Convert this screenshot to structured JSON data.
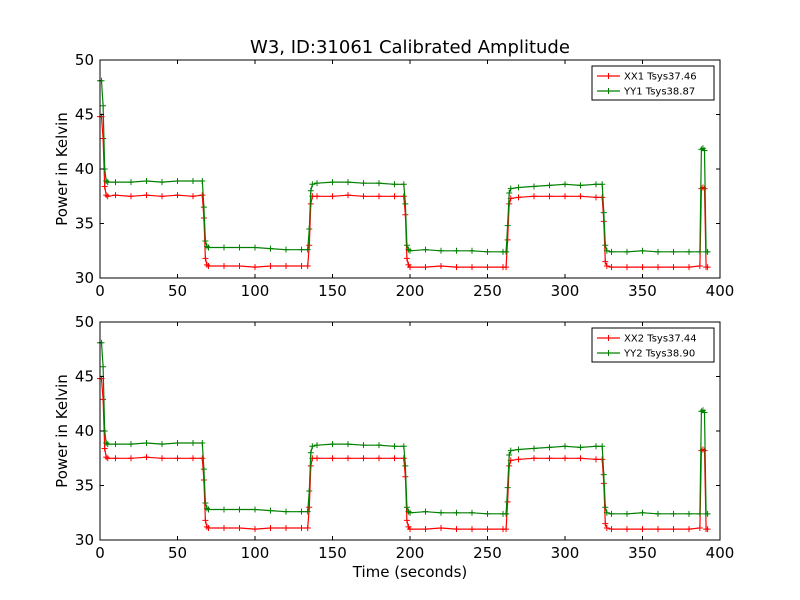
{
  "figure": {
    "title": "W3, ID:31061 Calibrated Amplitude",
    "xlabel": "Time (seconds)"
  },
  "chart_data": [
    {
      "type": "line",
      "title": "W3, ID:31061 Calibrated Amplitude",
      "xlabel": "",
      "ylabel": "Power in Kelvin",
      "xlim": [
        0,
        400
      ],
      "ylim": [
        30,
        50
      ],
      "xticks": [
        0,
        50,
        100,
        150,
        200,
        250,
        300,
        350,
        400
      ],
      "yticks": [
        30,
        35,
        40,
        45,
        50
      ],
      "grid": false,
      "legend": "top-right",
      "series": [
        {
          "name": "XX1 Tsys37.46",
          "color": "#ff0000",
          "marker": "plus",
          "x": [
            0,
            1,
            2,
            3,
            4,
            5,
            10,
            20,
            30,
            40,
            50,
            60,
            66,
            67,
            68,
            69,
            70,
            80,
            90,
            100,
            110,
            120,
            130,
            134,
            135,
            136,
            137,
            140,
            150,
            160,
            170,
            180,
            190,
            196,
            197,
            198,
            199,
            200,
            210,
            220,
            230,
            240,
            250,
            260,
            262,
            263,
            264,
            265,
            270,
            280,
            290,
            300,
            310,
            320,
            324,
            325,
            326,
            327,
            330,
            340,
            350,
            360,
            370,
            380,
            387,
            388,
            389,
            390,
            391,
            392
          ],
          "values": [
            44.8,
            44.8,
            42.8,
            38.4,
            37.6,
            37.5,
            37.6,
            37.5,
            37.6,
            37.5,
            37.6,
            37.5,
            37.6,
            35.5,
            31.8,
            31.2,
            31.1,
            31.1,
            31.1,
            31.0,
            31.1,
            31.1,
            31.1,
            31.1,
            33.0,
            36.8,
            37.5,
            37.5,
            37.5,
            37.6,
            37.5,
            37.5,
            37.5,
            37.5,
            35.8,
            31.8,
            31.2,
            31.0,
            31.0,
            31.1,
            31.0,
            31.0,
            31.0,
            31.0,
            31.0,
            33.5,
            36.8,
            37.3,
            37.4,
            37.5,
            37.5,
            37.5,
            37.5,
            37.4,
            37.4,
            35.2,
            31.5,
            31.1,
            31.0,
            31.0,
            31.0,
            31.0,
            31.0,
            31.0,
            31.1,
            38.2,
            38.3,
            38.2,
            31.0,
            31.0
          ]
        },
        {
          "name": "YY1 Tsys38.87",
          "color": "#008000",
          "marker": "plus",
          "x": [
            0,
            1,
            2,
            3,
            4,
            5,
            10,
            20,
            30,
            40,
            50,
            60,
            66,
            67,
            68,
            69,
            70,
            80,
            90,
            100,
            110,
            120,
            130,
            134,
            135,
            136,
            137,
            140,
            150,
            160,
            170,
            180,
            190,
            196,
            197,
            198,
            199,
            200,
            210,
            220,
            230,
            240,
            250,
            260,
            262,
            263,
            264,
            265,
            270,
            280,
            290,
            300,
            310,
            320,
            324,
            325,
            326,
            327,
            330,
            340,
            350,
            360,
            370,
            380,
            387,
            388,
            389,
            390,
            391,
            392
          ],
          "values": [
            48.1,
            48.1,
            45.8,
            40.0,
            38.9,
            38.8,
            38.8,
            38.8,
            38.9,
            38.8,
            38.9,
            38.9,
            38.9,
            36.5,
            33.4,
            32.9,
            32.8,
            32.8,
            32.8,
            32.8,
            32.7,
            32.6,
            32.6,
            32.6,
            34.5,
            38.0,
            38.6,
            38.7,
            38.8,
            38.8,
            38.7,
            38.7,
            38.6,
            38.6,
            36.8,
            33.0,
            32.6,
            32.5,
            32.6,
            32.5,
            32.5,
            32.5,
            32.4,
            32.4,
            32.4,
            34.8,
            37.8,
            38.2,
            38.3,
            38.4,
            38.5,
            38.6,
            38.5,
            38.6,
            38.6,
            36.0,
            33.0,
            32.5,
            32.4,
            32.4,
            32.5,
            32.4,
            32.4,
            32.4,
            32.4,
            41.8,
            41.9,
            41.7,
            32.4,
            32.4
          ]
        }
      ]
    },
    {
      "type": "line",
      "title": "",
      "xlabel": "Time (seconds)",
      "ylabel": "Power in Kelvin",
      "xlim": [
        0,
        400
      ],
      "ylim": [
        30,
        50
      ],
      "xticks": [
        0,
        50,
        100,
        150,
        200,
        250,
        300,
        350,
        400
      ],
      "yticks": [
        30,
        35,
        40,
        45,
        50
      ],
      "grid": false,
      "legend": "top-right",
      "series": [
        {
          "name": "XX2 Tsys37.44",
          "color": "#ff0000",
          "marker": "plus",
          "x": [
            0,
            1,
            2,
            3,
            4,
            5,
            10,
            20,
            30,
            40,
            50,
            60,
            66,
            67,
            68,
            69,
            70,
            80,
            90,
            100,
            110,
            120,
            130,
            134,
            135,
            136,
            137,
            140,
            150,
            160,
            170,
            180,
            190,
            196,
            197,
            198,
            199,
            200,
            210,
            220,
            230,
            240,
            250,
            260,
            262,
            263,
            264,
            265,
            270,
            280,
            290,
            300,
            310,
            320,
            324,
            325,
            326,
            327,
            330,
            340,
            350,
            360,
            370,
            380,
            387,
            388,
            389,
            390,
            391,
            392
          ],
          "values": [
            44.8,
            44.8,
            42.9,
            38.4,
            37.6,
            37.5,
            37.5,
            37.5,
            37.6,
            37.5,
            37.5,
            37.5,
            37.5,
            35.5,
            31.8,
            31.2,
            31.1,
            31.1,
            31.1,
            31.0,
            31.1,
            31.1,
            31.1,
            31.1,
            33.0,
            36.8,
            37.5,
            37.5,
            37.5,
            37.5,
            37.5,
            37.5,
            37.5,
            37.5,
            35.8,
            31.8,
            31.2,
            31.0,
            31.0,
            31.1,
            31.0,
            31.0,
            31.0,
            31.0,
            31.0,
            33.5,
            36.8,
            37.3,
            37.4,
            37.5,
            37.5,
            37.5,
            37.5,
            37.4,
            37.4,
            35.2,
            31.5,
            31.1,
            31.0,
            31.0,
            31.0,
            31.0,
            31.0,
            31.0,
            31.1,
            38.2,
            38.3,
            38.2,
            31.0,
            31.0
          ]
        },
        {
          "name": "YY2 Tsys38.90",
          "color": "#008000",
          "marker": "plus",
          "x": [
            0,
            1,
            2,
            3,
            4,
            5,
            10,
            20,
            30,
            40,
            50,
            60,
            66,
            67,
            68,
            69,
            70,
            80,
            90,
            100,
            110,
            120,
            130,
            134,
            135,
            136,
            137,
            140,
            150,
            160,
            170,
            180,
            190,
            196,
            197,
            198,
            199,
            200,
            210,
            220,
            230,
            240,
            250,
            260,
            262,
            263,
            264,
            265,
            270,
            280,
            290,
            300,
            310,
            320,
            324,
            325,
            326,
            327,
            330,
            340,
            350,
            360,
            370,
            380,
            387,
            388,
            389,
            390,
            391,
            392
          ],
          "values": [
            48.1,
            48.1,
            45.9,
            40.0,
            38.9,
            38.8,
            38.8,
            38.8,
            38.9,
            38.8,
            38.9,
            38.9,
            38.9,
            36.5,
            33.4,
            32.9,
            32.8,
            32.8,
            32.8,
            32.8,
            32.7,
            32.6,
            32.6,
            32.6,
            34.5,
            38.0,
            38.6,
            38.7,
            38.8,
            38.8,
            38.7,
            38.7,
            38.6,
            38.6,
            36.8,
            33.0,
            32.6,
            32.5,
            32.6,
            32.5,
            32.5,
            32.5,
            32.4,
            32.4,
            32.4,
            34.8,
            37.8,
            38.2,
            38.3,
            38.4,
            38.5,
            38.6,
            38.5,
            38.6,
            38.6,
            36.0,
            33.0,
            32.5,
            32.4,
            32.4,
            32.5,
            32.4,
            32.4,
            32.4,
            32.4,
            41.8,
            41.9,
            41.7,
            32.4,
            32.4
          ]
        }
      ]
    }
  ]
}
